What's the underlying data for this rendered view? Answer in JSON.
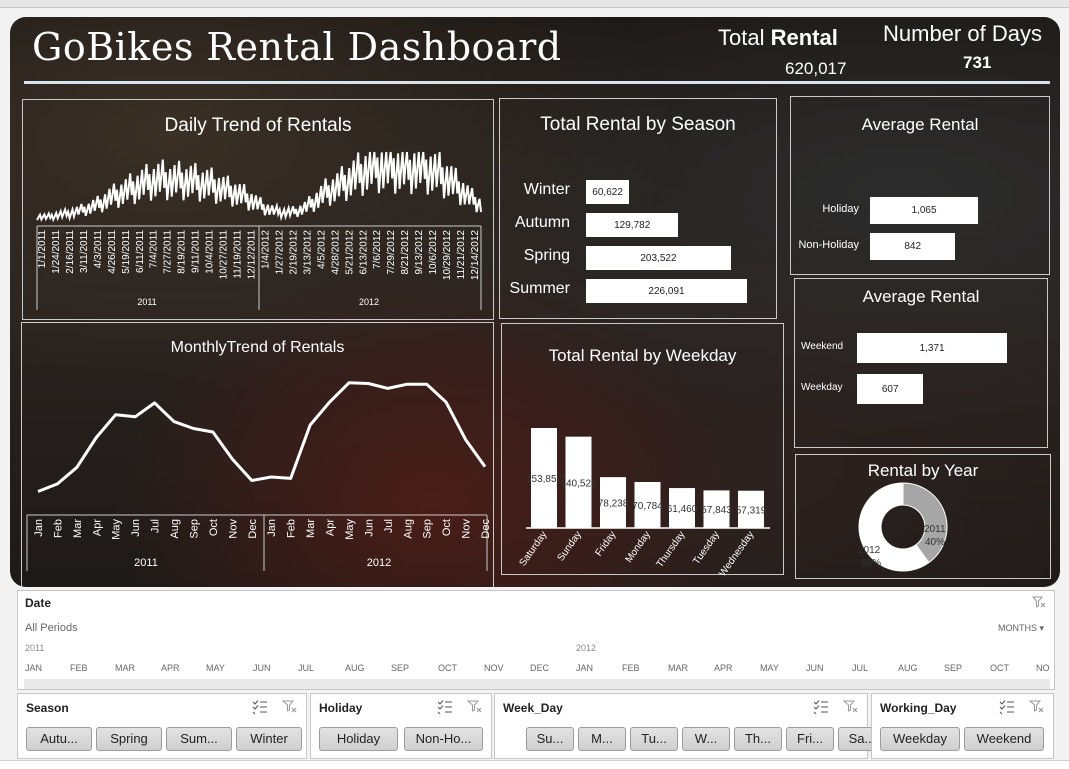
{
  "dashboard": {
    "title": "GoBikes Rental Dashboard",
    "total_rental_label_plain": "Total ",
    "total_rental_label_bold": "Rental",
    "total_rental_value": "620,017",
    "number_of_days_label": "Number of Days",
    "number_of_days_value": "731"
  },
  "panels": {
    "daily_trend_title": "Daily Trend of Rentals",
    "season_title": "Total Rental by Season",
    "avg_holiday_title": "Average Rental",
    "monthly_trend_title": "MonthlyTrend of Rentals",
    "weekday_title": "Total Rental by Weekday",
    "avg_weekend_title": "Average Rental",
    "year_title": "Rental by Year"
  },
  "chart_data": [
    {
      "type": "line",
      "title": "Daily Trend of Rentals",
      "x_tick_labels": [
        "1/1/2011",
        "1/24/2011",
        "2/16/2011",
        "3/11/2011",
        "4/3/2011",
        "4/26/2011",
        "5/19/2011",
        "6/11/2011",
        "7/4/2011",
        "7/27/2011",
        "8/19/2011",
        "9/11/2011",
        "10/4/2011",
        "10/27/2011",
        "11/19/2011",
        "12/12/2011",
        "1/4/2012",
        "1/27/2012",
        "2/19/2012",
        "3/13/2012",
        "4/5/2012",
        "4/28/2012",
        "5/21/2012",
        "6/13/2012",
        "7/6/2012",
        "7/29/2012",
        "8/21/2012",
        "9/13/2012",
        "10/6/2012",
        "10/29/2012",
        "11/21/2012",
        "12/14/2012"
      ],
      "groups": [
        "2011",
        "2012"
      ],
      "series": [
        {
          "values": [
            150,
            140,
            180,
            210,
            260,
            320,
            400,
            520,
            610,
            700,
            790,
            860,
            900,
            870,
            880,
            860,
            820,
            780,
            700,
            640,
            560,
            450,
            330,
            260,
            230,
            250,
            330,
            480,
            640,
            740,
            860,
            980,
            1100,
            1140,
            1130,
            1120,
            1090,
            1150,
            1080,
            1000,
            880,
            700,
            520,
            380
          ]
        }
      ]
    },
    {
      "type": "bar",
      "orientation": "horizontal",
      "title": "Total Rental by Season",
      "categories": [
        "Winter",
        "Autumn",
        "Spring",
        "Summer"
      ],
      "values": [
        60622,
        129782,
        203522,
        226091
      ],
      "value_labels": [
        "60,622",
        "129,782",
        "203,522",
        "226,091"
      ]
    },
    {
      "type": "bar",
      "orientation": "horizontal",
      "title": "Average Rental",
      "categories": [
        "Holiday",
        "Non-Holiday"
      ],
      "values": [
        1065,
        842
      ],
      "value_labels": [
        "1,065",
        "842"
      ]
    },
    {
      "type": "line",
      "title": "MonthlyTrend of Rentals",
      "categories": [
        "Jan",
        "Feb",
        "Mar",
        "Apr",
        "May",
        "Jun",
        "Jul",
        "Aug",
        "Sep",
        "Oct",
        "Nov",
        "Dec",
        "Jan",
        "Feb",
        "Mar",
        "Apr",
        "May",
        "Jun",
        "Jul",
        "Aug",
        "Sep",
        "Oct",
        "Nov",
        "Dec"
      ],
      "groups": [
        "2011",
        "2012"
      ],
      "series": [
        {
          "values": [
            3100,
            4200,
            6600,
            10900,
            14200,
            13900,
            15900,
            13200,
            12200,
            11700,
            7800,
            4700,
            5200,
            5000,
            12700,
            16000,
            18800,
            18700,
            18000,
            18600,
            18600,
            16000,
            10600,
            6700
          ]
        }
      ]
    },
    {
      "type": "bar",
      "title": "Total Rental by Weekday",
      "categories": [
        "Saturday",
        "Sunday",
        "Friday",
        "Monday",
        "Thursday",
        "Tuesday",
        "Wednesday"
      ],
      "values": [
        153852,
        140521,
        78238,
        70784,
        61460,
        57843,
        57319
      ],
      "value_labels": [
        "153,852",
        "140,521",
        "78,238",
        "70,784",
        "61,460",
        "57,843",
        "57,319"
      ]
    },
    {
      "type": "bar",
      "orientation": "horizontal",
      "title": "Average Rental",
      "categories": [
        "Weekend",
        "Weekday"
      ],
      "values": [
        1371,
        607
      ],
      "value_labels": [
        "1,371",
        "607"
      ]
    },
    {
      "type": "pie",
      "title": "Rental by Year",
      "categories": [
        "2011",
        "2012"
      ],
      "values": [
        40,
        60
      ],
      "value_labels": [
        "40%",
        "60%"
      ]
    }
  ],
  "timeline": {
    "title": "Date",
    "period": "All Periods",
    "level": "MONTHS",
    "year_2011": "2011",
    "year_2012": "2012",
    "months": [
      "JAN",
      "FEB",
      "MAR",
      "APR",
      "MAY",
      "JUN",
      "JUL",
      "AUG",
      "SEP",
      "OCT",
      "NOV",
      "DEC",
      "JAN",
      "FEB",
      "MAR",
      "APR",
      "MAY",
      "JUN",
      "JUL",
      "AUG",
      "SEP",
      "OCT",
      "NO"
    ]
  },
  "slicers": {
    "season": {
      "title": "Season",
      "items": [
        "Autu...",
        "Spring",
        "Sum...",
        "Winter"
      ]
    },
    "holiday": {
      "title": "Holiday",
      "items": [
        "Holiday",
        "Non-Ho..."
      ]
    },
    "week_day": {
      "title": "Week_Day",
      "items": [
        "Su...",
        "M...",
        "Tu...",
        "W...",
        "Th...",
        "Fri...",
        "Sa..."
      ]
    },
    "working_day": {
      "title": "Working_Day",
      "items": [
        "Weekday",
        "Weekend"
      ]
    }
  },
  "colors": {
    "bar": "#ffffff",
    "pie_2011": "#a6a6a6",
    "pie_2012": "#ffffff"
  }
}
